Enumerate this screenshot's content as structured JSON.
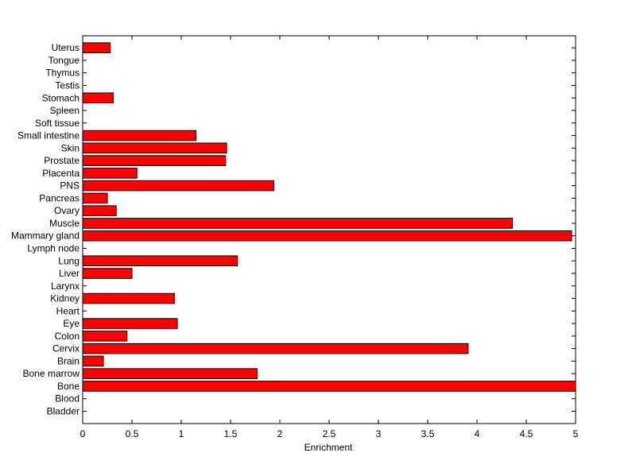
{
  "chart_data": {
    "type": "bar",
    "orientation": "horizontal",
    "categories": [
      "Bladder",
      "Blood",
      "Bone",
      "Bone marrow",
      "Brain",
      "Cervix",
      "Colon",
      "Eye",
      "Heart",
      "Kidney",
      "Larynx",
      "Liver",
      "Lung",
      "Lymph node",
      "Mammary gland",
      "Muscle",
      "Ovary",
      "Pancreas",
      "PNS",
      "Placenta",
      "Prostate",
      "Skin",
      "Small intestine",
      "Soft tissue",
      "Spleen",
      "Stomach",
      "Testis",
      "Thymus",
      "Tongue",
      "Uterus"
    ],
    "values": [
      0,
      0,
      5.0,
      1.77,
      0.21,
      3.91,
      0.45,
      0.96,
      0,
      0.93,
      0,
      0.5,
      1.57,
      0,
      4.96,
      4.36,
      0.34,
      0.25,
      1.94,
      0.55,
      1.45,
      1.46,
      1.15,
      0,
      0,
      0.31,
      0,
      0,
      0,
      0.28
    ],
    "xlabel": "Enrichment",
    "ylabel": "",
    "title": "",
    "xlim": [
      0,
      5
    ],
    "xticks": [
      "0",
      "0.5",
      "1",
      "1.5",
      "2",
      "2.5",
      "3",
      "3.5",
      "4",
      "4.5",
      "5"
    ],
    "bar_color": "#ff0000",
    "edge_color": "#000000",
    "grid": false,
    "legend": false
  }
}
